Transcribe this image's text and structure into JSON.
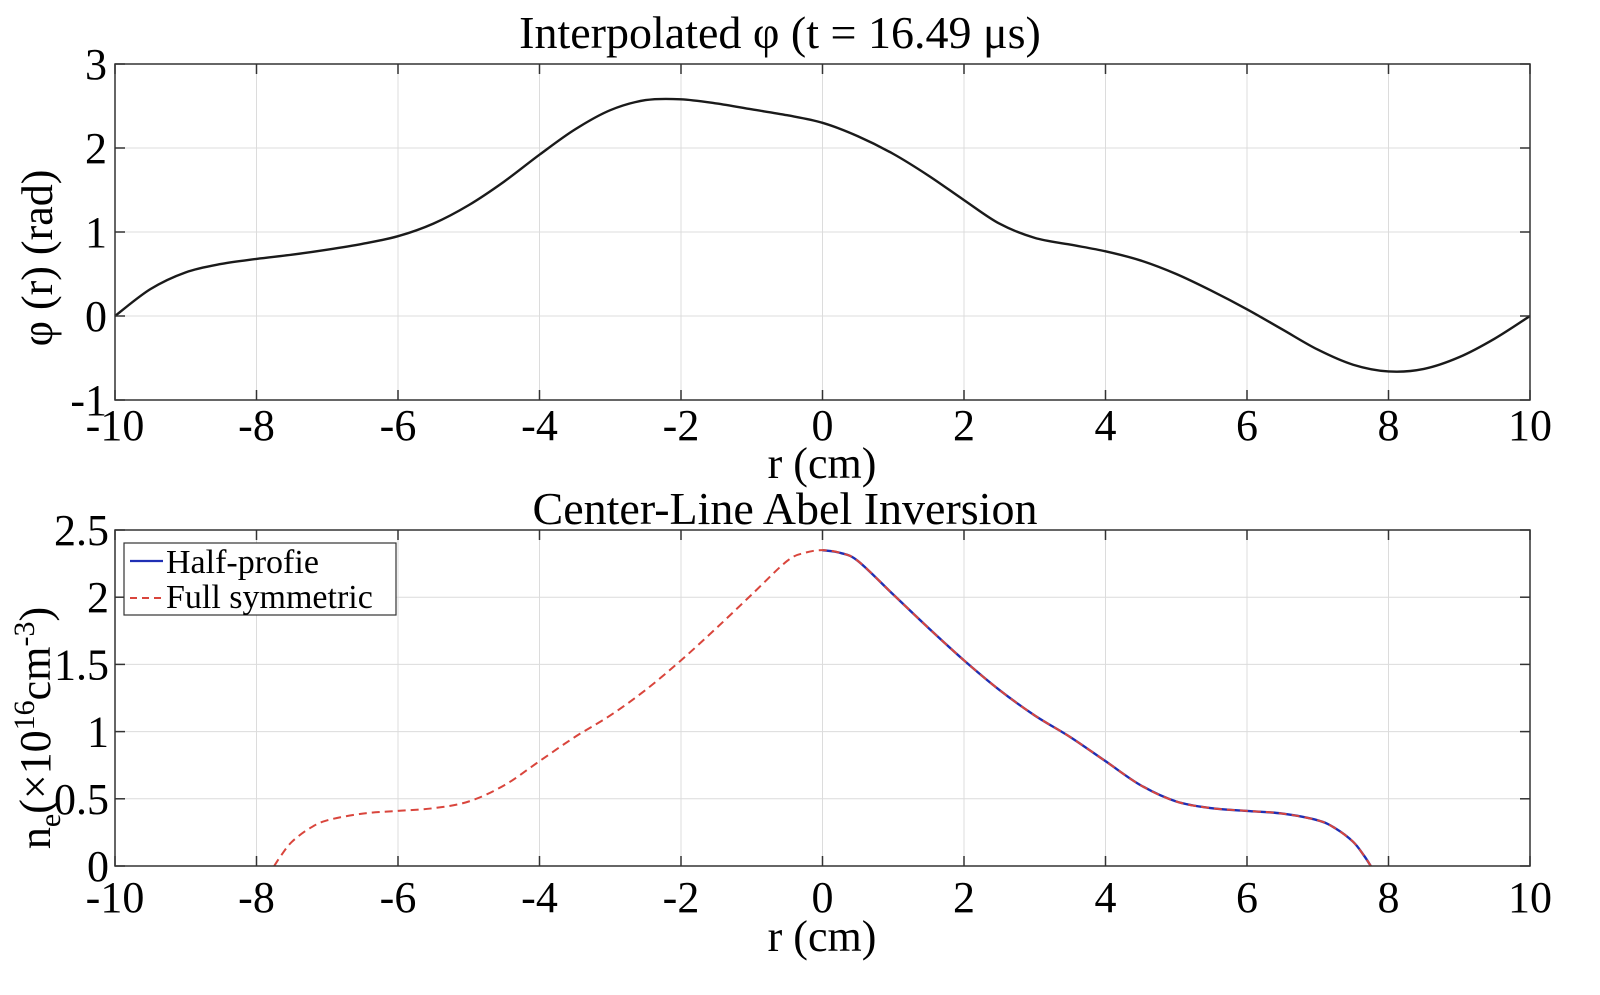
{
  "chart_data": [
    {
      "type": "line",
      "title": "Interpolated  φ (t = 16.49 μs)",
      "xlabel": "r (cm)",
      "ylabel": "φ (r) (rad)",
      "xlim": [
        -10,
        10
      ],
      "ylim": [
        -1,
        3
      ],
      "xticks": [
        -10,
        -8,
        -6,
        -4,
        -2,
        0,
        2,
        4,
        6,
        8,
        10
      ],
      "yticks": [
        -1,
        0,
        1,
        2,
        3
      ],
      "xtick_labels": [
        "-10",
        "-8",
        "-6",
        "-4",
        "-2",
        "0",
        "2",
        "4",
        "6",
        "8",
        "10"
      ],
      "ytick_labels": [
        "-1",
        "0",
        "1",
        "2",
        "3"
      ],
      "grid": true,
      "series": [
        {
          "name": "φ",
          "color": "#1a1a1a",
          "style": "solid",
          "x": [
            -10,
            -9.5,
            -9,
            -8.5,
            -8,
            -7.5,
            -7,
            -6.5,
            -6,
            -5.5,
            -5,
            -4.5,
            -4,
            -3.5,
            -3,
            -2.5,
            -2,
            -1.5,
            -1,
            -0.5,
            0,
            0.5,
            1,
            1.5,
            2,
            2.5,
            3,
            3.5,
            4,
            4.5,
            5,
            5.5,
            6,
            6.5,
            7,
            7.5,
            8,
            8.5,
            9,
            9.5,
            10
          ],
          "y": [
            0,
            0.32,
            0.52,
            0.62,
            0.68,
            0.73,
            0.79,
            0.86,
            0.95,
            1.1,
            1.32,
            1.6,
            1.92,
            2.22,
            2.45,
            2.57,
            2.58,
            2.53,
            2.46,
            2.39,
            2.3,
            2.14,
            1.93,
            1.67,
            1.38,
            1.1,
            0.93,
            0.85,
            0.77,
            0.66,
            0.5,
            0.3,
            0.08,
            -0.16,
            -0.4,
            -0.58,
            -0.66,
            -0.63,
            -0.49,
            -0.27,
            0
          ]
        }
      ]
    },
    {
      "type": "line",
      "title": "Center-Line Abel Inversion",
      "xlabel": "r (cm)",
      "ylabel_main": "n",
      "ylabel_sub": "e",
      "ylabel_rest": "(×10",
      "ylabel_sup1": "16",
      "ylabel_cm": "cm",
      "ylabel_sup2": "-3",
      "ylabel_close": ")",
      "xlim": [
        -10,
        10
      ],
      "ylim": [
        0,
        2.5
      ],
      "xticks": [
        -10,
        -8,
        -6,
        -4,
        -2,
        0,
        2,
        4,
        6,
        8,
        10
      ],
      "yticks": [
        0,
        0.5,
        1,
        1.5,
        2,
        2.5
      ],
      "xtick_labels": [
        "-10",
        "-8",
        "-6",
        "-4",
        "-2",
        "0",
        "2",
        "4",
        "6",
        "8",
        "10"
      ],
      "ytick_labels": [
        "0",
        "0.5",
        "1",
        "1.5",
        "2",
        "2.5"
      ],
      "grid": true,
      "legend": "top-left",
      "series": [
        {
          "name": "Half-profie",
          "color": "#1f2fb4",
          "style": "solid",
          "x": [
            0,
            0.25,
            0.5,
            1,
            1.5,
            2,
            2.5,
            3,
            3.5,
            4,
            4.5,
            5,
            5.5,
            6,
            6.5,
            7,
            7.25,
            7.5,
            7.65,
            7.75
          ],
          "y": [
            2.35,
            2.33,
            2.27,
            2.02,
            1.77,
            1.53,
            1.31,
            1.12,
            0.96,
            0.78,
            0.6,
            0.48,
            0.43,
            0.41,
            0.39,
            0.34,
            0.28,
            0.18,
            0.08,
            0
          ]
        },
        {
          "name": "Full symmetric",
          "color": "#d9453c",
          "style": "dashed",
          "x": [
            -7.75,
            -7.65,
            -7.5,
            -7.25,
            -7,
            -6.5,
            -6,
            -5.5,
            -5,
            -4.5,
            -4,
            -3.5,
            -3,
            -2.5,
            -2,
            -1.5,
            -1,
            -0.5,
            -0.25,
            0,
            0.25,
            0.5,
            1,
            1.5,
            2,
            2.5,
            3,
            3.5,
            4,
            4.5,
            5,
            5.5,
            6,
            6.5,
            7,
            7.25,
            7.5,
            7.65,
            7.75
          ],
          "y": [
            0,
            0.08,
            0.18,
            0.28,
            0.34,
            0.39,
            0.41,
            0.43,
            0.48,
            0.6,
            0.78,
            0.96,
            1.12,
            1.31,
            1.53,
            1.77,
            2.02,
            2.27,
            2.33,
            2.35,
            2.33,
            2.27,
            2.02,
            1.77,
            1.53,
            1.31,
            1.12,
            0.96,
            0.78,
            0.6,
            0.48,
            0.43,
            0.41,
            0.39,
            0.34,
            0.28,
            0.18,
            0.08,
            0
          ]
        }
      ]
    }
  ]
}
